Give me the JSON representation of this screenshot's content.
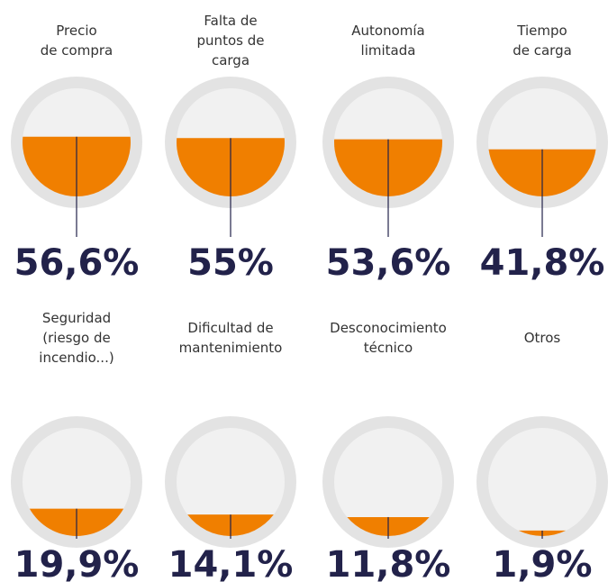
{
  "chart_data": {
    "type": "fill-circle",
    "categories": [
      "Precio\nde compra",
      "Falta de\npuntos de\ncarga",
      "Autonomía\nlimitada",
      "Tiempo\nde carga",
      "Seguridad\n(riesgo de\nincendio...)",
      "Dificultad de\nmantenimiento",
      "Desconocimiento\ntécnico",
      "Otros"
    ],
    "values": [
      56.6,
      55,
      53.6,
      41.8,
      19.9,
      14.1,
      11.8,
      1.9
    ],
    "value_labels": [
      "56,6%",
      "55%",
      "53,6%",
      "41,8%",
      "19,9%",
      "14,1%",
      "11,8%",
      "1,9%"
    ],
    "ylim": [
      0,
      100
    ],
    "color": "#f07f00"
  }
}
